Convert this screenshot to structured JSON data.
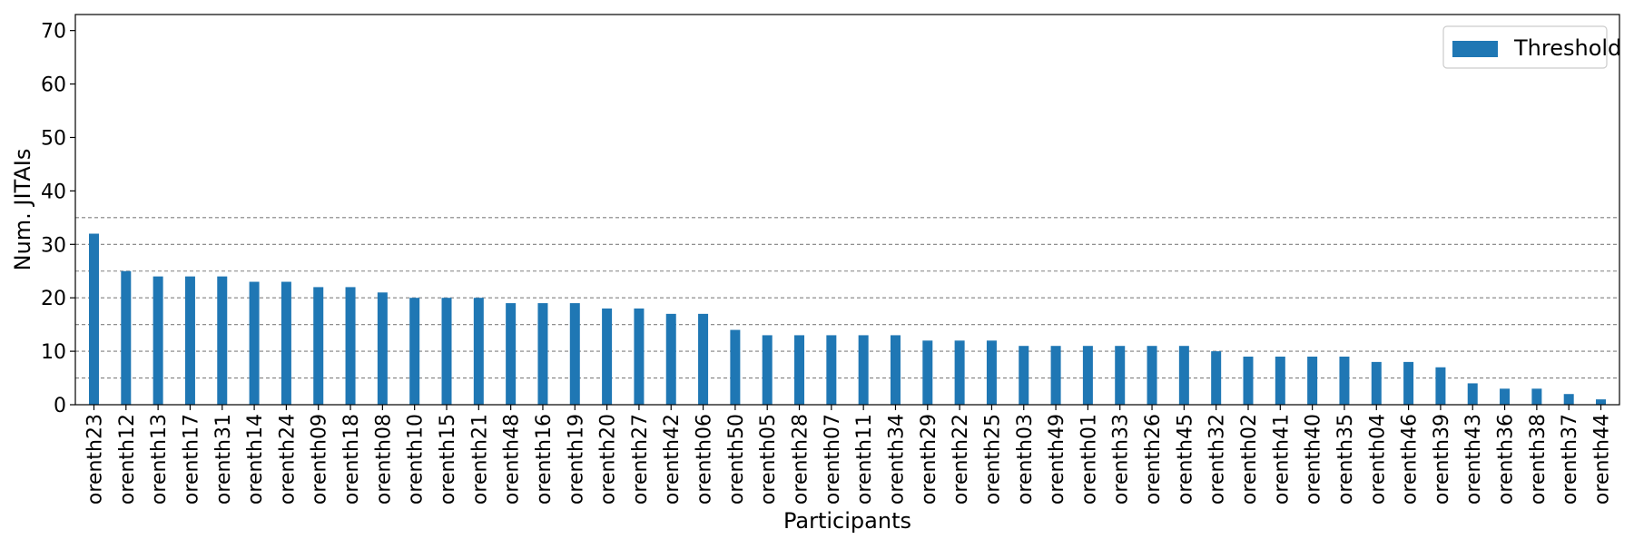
{
  "chart_data": {
    "type": "bar",
    "title": "",
    "xlabel": "Participants",
    "ylabel": "Num. JITAIs",
    "ylim": [
      0,
      73
    ],
    "yticks": [
      0,
      10,
      20,
      30,
      40,
      50,
      60,
      70
    ],
    "reference_lines": [
      5,
      10,
      15,
      20,
      25,
      30,
      35
    ],
    "grid": "horizontal dashed reference lines at 5-unit intervals from 5 to 35",
    "legend_placement": "top-right",
    "bar_color": "#1f77b4",
    "categories": [
      "orenth23",
      "orenth12",
      "orenth13",
      "orenth17",
      "orenth31",
      "orenth14",
      "orenth24",
      "orenth09",
      "orenth18",
      "orenth08",
      "orenth10",
      "orenth15",
      "orenth21",
      "orenth48",
      "orenth16",
      "orenth19",
      "orenth20",
      "orenth27",
      "orenth42",
      "orenth06",
      "orenth50",
      "orenth05",
      "orenth28",
      "orenth07",
      "orenth11",
      "orenth34",
      "orenth29",
      "orenth22",
      "orenth25",
      "orenth03",
      "orenth49",
      "orenth01",
      "orenth33",
      "orenth26",
      "orenth45",
      "orenth32",
      "orenth02",
      "orenth41",
      "orenth40",
      "orenth35",
      "orenth04",
      "orenth46",
      "orenth39",
      "orenth43",
      "orenth36",
      "orenth38",
      "orenth37",
      "orenth44"
    ],
    "series": [
      {
        "name": "Threshold",
        "values": [
          32,
          25,
          24,
          24,
          24,
          23,
          23,
          22,
          22,
          21,
          20,
          20,
          20,
          19,
          19,
          19,
          18,
          18,
          17,
          17,
          14,
          13,
          13,
          13,
          13,
          13,
          12,
          12,
          12,
          11,
          11,
          11,
          11,
          11,
          11,
          10,
          9,
          9,
          9,
          9,
          8,
          8,
          7,
          4,
          3,
          3,
          2,
          1
        ]
      }
    ]
  }
}
